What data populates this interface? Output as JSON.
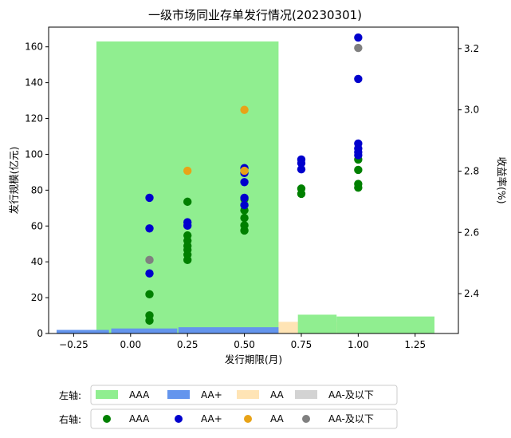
{
  "chart_data": {
    "title": "一级市场同业存单发行情况(20230301)",
    "xlabel": "发行期限(月)",
    "ylabel_left": "发行规模(亿元)",
    "ylabel_right": "收益率(%)",
    "xlim": [
      -0.36,
      1.44
    ],
    "ylim_left": [
      0,
      171
    ],
    "ylim_right": [
      2.27,
      3.27
    ],
    "x_ticks": [
      -0.25,
      0.0,
      0.25,
      0.5,
      0.75,
      1.0,
      1.25
    ],
    "x_tick_labels": [
      "−0.25",
      "0.00",
      "0.25",
      "0.50",
      "0.75",
      "1.00",
      "1.25"
    ],
    "y_left_ticks": [
      0,
      20,
      40,
      60,
      80,
      100,
      120,
      140,
      160
    ],
    "y_right_ticks": [
      2.4,
      2.6,
      2.8,
      3.0,
      3.2
    ],
    "bars": [
      {
        "rating": "AA-及以下",
        "x": -0.15,
        "width": 0.3,
        "value": 0.5,
        "color": "#b4b4b4"
      },
      {
        "rating": "AA-及以下",
        "x": 0.65,
        "width": 0.75,
        "value": 5.5,
        "color": "#d3d3d3"
      },
      {
        "rating": "AA",
        "x": -0.15,
        "width": 0.3,
        "value": 0.8,
        "color": "#ffe4b5"
      },
      {
        "rating": "AA",
        "x": 0.65,
        "width": 0.75,
        "value": 6.5,
        "color": "#ffe4b5"
      },
      {
        "rating": "AAA",
        "x": 0.25,
        "width": 0.8,
        "value": 163,
        "color": "#90ee90"
      },
      {
        "rating": "AAA",
        "x": 0.82,
        "width": 0.17,
        "value": 10.5,
        "color": "#90ee90"
      },
      {
        "rating": "AAA",
        "x": 1.12,
        "width": 0.43,
        "value": 9.5,
        "color": "#90ee90"
      },
      {
        "rating": "AA+",
        "x": -0.21,
        "width": 0.23,
        "value": 2.0,
        "color": "#6495ed"
      },
      {
        "rating": "AA+",
        "x": 0.06,
        "width": 0.29,
        "value": 2.8,
        "color": "#6495ed"
      },
      {
        "rating": "AA+",
        "x": 0.43,
        "width": 0.44,
        "value": 3.5,
        "color": "#6495ed"
      }
    ],
    "scatter": [
      {
        "name": "AAA",
        "color": "#008000",
        "points": [
          [
            0.083,
            2.312
          ],
          [
            0.083,
            2.329
          ],
          [
            0.083,
            2.398
          ],
          [
            0.25,
            2.51
          ],
          [
            0.25,
            2.527
          ],
          [
            0.25,
            2.543
          ],
          [
            0.25,
            2.556
          ],
          [
            0.25,
            2.573
          ],
          [
            0.25,
            2.59
          ],
          [
            0.25,
            2.7
          ],
          [
            0.5,
            2.606
          ],
          [
            0.5,
            2.623
          ],
          [
            0.5,
            2.647
          ],
          [
            0.5,
            2.672
          ],
          [
            0.5,
            2.709
          ],
          [
            0.75,
            2.726
          ],
          [
            0.75,
            2.743
          ],
          [
            1.0,
            2.746
          ],
          [
            1.0,
            2.758
          ],
          [
            1.0,
            2.804
          ],
          [
            1.0,
            2.838
          ]
        ]
      },
      {
        "name": "AA+",
        "color": "#0000cd",
        "points": [
          [
            0.083,
            2.466
          ],
          [
            0.083,
            2.613
          ],
          [
            0.083,
            2.713
          ],
          [
            0.25,
            2.622
          ],
          [
            0.25,
            2.633
          ],
          [
            0.5,
            2.689
          ],
          [
            0.5,
            2.713
          ],
          [
            0.5,
            2.764
          ],
          [
            0.5,
            2.794
          ],
          [
            0.5,
            2.81
          ],
          [
            0.75,
            2.806
          ],
          [
            0.75,
            2.826
          ],
          [
            0.75,
            2.838
          ],
          [
            1.0,
            2.852
          ],
          [
            1.0,
            2.862
          ],
          [
            1.0,
            2.874
          ],
          [
            1.0,
            2.89
          ],
          [
            1.0,
            3.101
          ],
          [
            1.0,
            3.236
          ]
        ]
      },
      {
        "name": "AA",
        "color": "#e8a317",
        "points": [
          [
            0.25,
            2.801
          ],
          [
            0.5,
            2.801
          ],
          [
            0.5,
            3.0
          ]
        ]
      },
      {
        "name": "AA-及以下",
        "color": "#808080",
        "points": [
          [
            0.083,
            2.51
          ],
          [
            1.0,
            3.202
          ]
        ]
      }
    ]
  },
  "legend": {
    "left_label": "左轴:",
    "right_label": "右轴:",
    "left_items": [
      {
        "label": "AAA",
        "color": "#90ee90"
      },
      {
        "label": "AA+",
        "color": "#6495ed"
      },
      {
        "label": "AA",
        "color": "#ffe4b5"
      },
      {
        "label": "AA-及以下",
        "color": "#d3d3d3"
      }
    ],
    "right_items": [
      {
        "label": "AAA",
        "color": "#008000"
      },
      {
        "label": "AA+",
        "color": "#0000cd"
      },
      {
        "label": "AA",
        "color": "#e8a317"
      },
      {
        "label": "AA-及以下",
        "color": "#808080"
      }
    ]
  }
}
